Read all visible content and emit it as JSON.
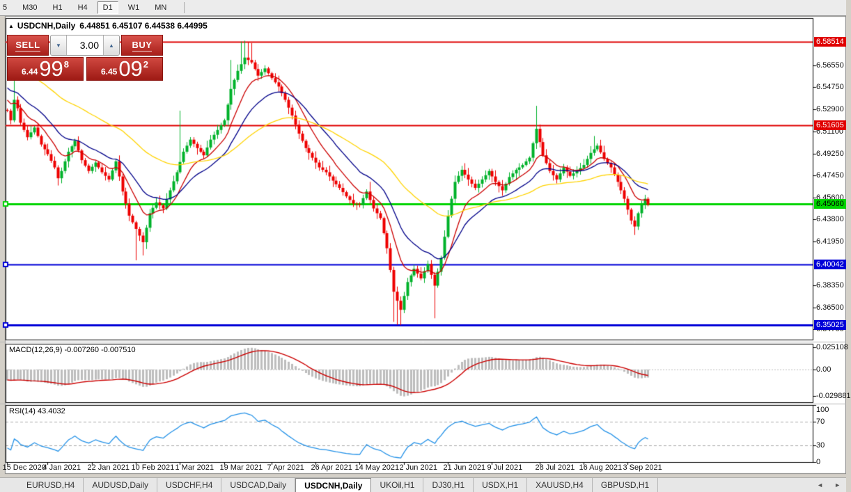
{
  "toolbar": {
    "timeframes": [
      "5",
      "M30",
      "H1",
      "H4",
      "D1",
      "W1",
      "MN"
    ],
    "active": "D1"
  },
  "chart_header": {
    "collapse_icon": "▲",
    "title": "USDCNH,Daily",
    "ohlc": "6.44851 6.45107 6.44538 6.44995"
  },
  "trade_panel": {
    "sell_label": "SELL",
    "buy_label": "BUY",
    "volume": "3.00",
    "spinner_down": "▼",
    "spinner_up": "▲",
    "sell_price_small": "6.44",
    "sell_price_big": "99",
    "sell_price_sup": "8",
    "buy_price_small": "6.45",
    "buy_price_big": "09",
    "buy_price_sup": "2"
  },
  "price_axis": {
    "plain_ticks": [
      6.5655,
      6.5475,
      6.529,
      6.511,
      6.4925,
      6.4745,
      6.456,
      6.438,
      6.4195,
      6.3835,
      6.365,
      6.347
    ]
  },
  "hlines": [
    {
      "price": 6.58514,
      "label": "6.58514",
      "color": "#e00000",
      "thickness": 2,
      "label_bg": "#e00000",
      "label_fg": "#ffffff",
      "marker": false
    },
    {
      "price": 6.51605,
      "label": "6.51605",
      "color": "#e00000",
      "thickness": 2,
      "label_bg": "#e00000",
      "label_fg": "#ffffff",
      "marker": false
    },
    {
      "price": 6.4506,
      "label": "6.45060",
      "color": "#00d400",
      "thickness": 3,
      "label_bg": "#00d400",
      "label_fg": "#000000",
      "marker": true
    },
    {
      "price": 6.40042,
      "label": "6.40042",
      "color": "#0000d8",
      "thickness": 2,
      "label_bg": "#0000d8",
      "label_fg": "#ffffff",
      "marker": true
    },
    {
      "price": 6.35025,
      "label": "6.35025",
      "color": "#0000d8",
      "thickness": 3,
      "label_bg": "#0000d8",
      "label_fg": "#ffffff",
      "marker": true
    }
  ],
  "chart_data": {
    "type": "candlestick",
    "symbol": "USDCNH",
    "timeframe": "Daily",
    "open": 6.44851,
    "high": 6.45107,
    "low": 6.44538,
    "close": 6.44995,
    "bid": "6.44998",
    "ask": "6.45092",
    "n_bars": 190,
    "close_anchors": [
      [
        0,
        6.528
      ],
      [
        1,
        6.52
      ],
      [
        2,
        6.537
      ],
      [
        3,
        6.53
      ],
      [
        4,
        6.518
      ],
      [
        6,
        6.506
      ],
      [
        8,
        6.514
      ],
      [
        10,
        6.5
      ],
      [
        12,
        6.492
      ],
      [
        14,
        6.481
      ],
      [
        15,
        6.472
      ],
      [
        16,
        6.478
      ],
      [
        18,
        6.494
      ],
      [
        20,
        6.503
      ],
      [
        22,
        6.487
      ],
      [
        24,
        6.478
      ],
      [
        26,
        6.485
      ],
      [
        28,
        6.477
      ],
      [
        30,
        6.471
      ],
      [
        32,
        6.486
      ],
      [
        34,
        6.461
      ],
      [
        36,
        6.441
      ],
      [
        38,
        6.43
      ],
      [
        40,
        6.419
      ],
      [
        42,
        6.443
      ],
      [
        44,
        6.452
      ],
      [
        46,
        6.447
      ],
      [
        48,
        6.462
      ],
      [
        50,
        6.477
      ],
      [
        52,
        6.494
      ],
      [
        54,
        6.504
      ],
      [
        56,
        6.497
      ],
      [
        58,
        6.491
      ],
      [
        60,
        6.504
      ],
      [
        62,
        6.512
      ],
      [
        64,
        6.52
      ],
      [
        66,
        6.546
      ],
      [
        68,
        6.561
      ],
      [
        70,
        6.572
      ],
      [
        72,
        6.568
      ],
      [
        74,
        6.557
      ],
      [
        76,
        6.563
      ],
      [
        78,
        6.555
      ],
      [
        80,
        6.548
      ],
      [
        82,
        6.537
      ],
      [
        84,
        6.524
      ],
      [
        86,
        6.509
      ],
      [
        88,
        6.497
      ],
      [
        90,
        6.489
      ],
      [
        92,
        6.481
      ],
      [
        94,
        6.477
      ],
      [
        96,
        6.47
      ],
      [
        98,
        6.464
      ],
      [
        100,
        6.457
      ],
      [
        102,
        6.451
      ],
      [
        104,
        6.45
      ],
      [
        106,
        6.461
      ],
      [
        108,
        6.447
      ],
      [
        110,
        6.439
      ],
      [
        112,
        6.414
      ],
      [
        114,
        6.378
      ],
      [
        116,
        6.363
      ],
      [
        118,
        6.386
      ],
      [
        120,
        6.397
      ],
      [
        122,
        6.389
      ],
      [
        124,
        6.401
      ],
      [
        126,
        6.383
      ],
      [
        128,
        6.406
      ],
      [
        130,
        6.441
      ],
      [
        132,
        6.469
      ],
      [
        134,
        6.479
      ],
      [
        136,
        6.471
      ],
      [
        138,
        6.464
      ],
      [
        140,
        6.471
      ],
      [
        142,
        6.478
      ],
      [
        144,
        6.469
      ],
      [
        146,
        6.462
      ],
      [
        148,
        6.473
      ],
      [
        150,
        6.479
      ],
      [
        152,
        6.483
      ],
      [
        154,
        6.489
      ],
      [
        156,
        6.513
      ],
      [
        158,
        6.491
      ],
      [
        160,
        6.478
      ],
      [
        162,
        6.471
      ],
      [
        164,
        6.481
      ],
      [
        166,
        6.474
      ],
      [
        168,
        6.478
      ],
      [
        170,
        6.483
      ],
      [
        172,
        6.493
      ],
      [
        174,
        6.499
      ],
      [
        176,
        6.488
      ],
      [
        178,
        6.481
      ],
      [
        180,
        6.469
      ],
      [
        182,
        6.455
      ],
      [
        184,
        6.437
      ],
      [
        185,
        6.432
      ],
      [
        186,
        6.443
      ],
      [
        187,
        6.45
      ],
      [
        188,
        6.455
      ],
      [
        189,
        6.45
      ]
    ],
    "wick_overrides": {
      "highs": [
        [
          2,
          6.556
        ],
        [
          51,
          6.528
        ],
        [
          66,
          6.57
        ],
        [
          69,
          6.5853
        ],
        [
          70,
          6.586
        ],
        [
          71,
          6.585
        ],
        [
          72,
          6.584
        ],
        [
          107,
          6.469
        ],
        [
          156,
          6.532
        ],
        [
          173,
          6.507
        ]
      ],
      "lows": [
        [
          15,
          6.466
        ],
        [
          38,
          6.404
        ],
        [
          40,
          6.408
        ],
        [
          114,
          6.353
        ],
        [
          115,
          6.3505
        ],
        [
          116,
          6.3502
        ],
        [
          126,
          6.356
        ],
        [
          185,
          6.425
        ]
      ]
    },
    "synthesis": {
      "pre_trend_bars": 40,
      "pre_trend_start": 6.605
    },
    "date_ticks": [
      [
        0,
        "15 Dec 2020"
      ],
      [
        12,
        "4 Jan 2021"
      ],
      [
        25,
        "22 Jan 2021"
      ],
      [
        38,
        "10 Feb 2021"
      ],
      [
        51,
        "1 Mar 2021"
      ],
      [
        64,
        "19 Mar 2021"
      ],
      [
        78,
        "7 Apr 2021"
      ],
      [
        91,
        "26 Apr 2021"
      ],
      [
        104,
        "14 May 2021"
      ],
      [
        117,
        "2 Jun 2021"
      ],
      [
        130,
        "21 Jun 2021"
      ],
      [
        143,
        "9 Jul 2021"
      ],
      [
        157,
        "28 Jul 2021"
      ],
      [
        170,
        "16 Aug 2021"
      ],
      [
        183,
        "3 Sep 2021"
      ]
    ],
    "moving_averages": [
      {
        "period": 10,
        "color": "#cc0000"
      },
      {
        "period": 21,
        "color": "#000089"
      },
      {
        "period": 55,
        "color": "#ffd400"
      }
    ]
  },
  "macd_panel": {
    "label": "MACD(12,26,9) -0.007260 -0.007510",
    "params": [
      12,
      26,
      9
    ],
    "macd_value": -0.00726,
    "signal_value": -0.00751,
    "axis_labels": [
      "0.025108",
      "0.00",
      "-0.029881"
    ],
    "axis_values": [
      0.025108,
      0,
      -0.029881
    ],
    "hist_color": "#bdbdbd",
    "signal_color": "#cc0000"
  },
  "rsi_panel": {
    "label": "RSI(14) 43.4032",
    "period": 14,
    "value": 43.4032,
    "axis_labels": [
      "100",
      "70",
      "30",
      "0"
    ],
    "axis_values": [
      100,
      70,
      30,
      0
    ],
    "levels": [
      70,
      30
    ],
    "line_color": "#2492e8"
  },
  "candle_colors": {
    "up": "#00b22a",
    "down": "#ee0000"
  },
  "bottom_tabs": {
    "tabs": [
      "EURUSD,H4",
      "AUDUSD,Daily",
      "USDCHF,H4",
      "USDCAD,Daily",
      "USDCNH,Daily",
      "UKOil,H1",
      "DJ30,H1",
      "USDX,H1",
      "XAUUSD,H4",
      "GBPUSD,H1"
    ],
    "active": "USDCNH,Daily",
    "arrow_left": "◄",
    "arrow_right": "►"
  }
}
